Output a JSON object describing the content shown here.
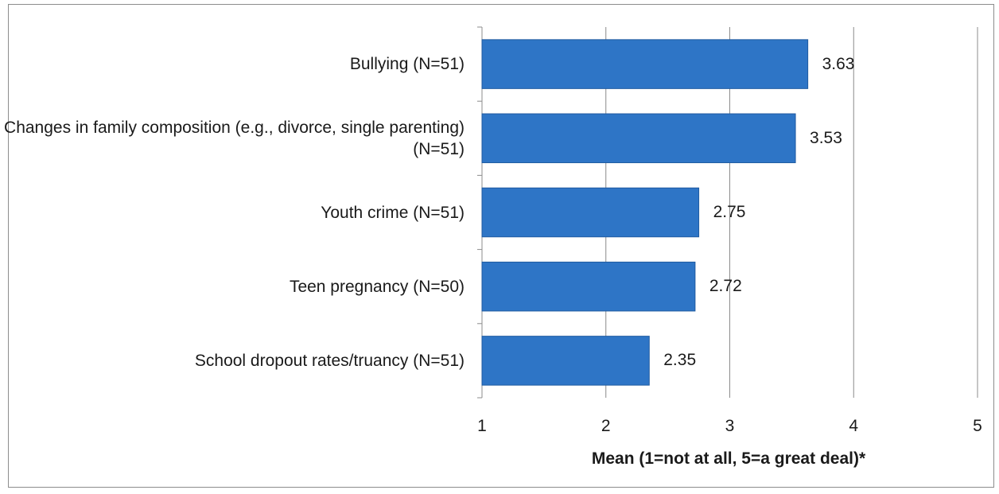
{
  "chart_data": {
    "type": "bar",
    "orientation": "horizontal",
    "categories": [
      "Bullying (N=51)",
      "Changes in family composition (e.g., divorce, single parenting) (N=51)",
      "Youth crime (N=51)",
      "Teen pregnancy (N=50)",
      "School dropout rates/truancy (N=51)"
    ],
    "values": [
      3.63,
      3.53,
      2.75,
      2.72,
      2.35
    ],
    "value_labels": [
      "3.63",
      "3.53",
      "2.75",
      "2.72",
      "2.35"
    ],
    "xlabel": "Mean (1=not at all, 5=a great deal)*",
    "xlim": [
      1,
      5
    ],
    "xticks": [
      "1",
      "2",
      "3",
      "4",
      "5"
    ],
    "grid": "vertical",
    "bar_color": "#2e75c6",
    "bar_edge_color": "#1f5aa0"
  }
}
